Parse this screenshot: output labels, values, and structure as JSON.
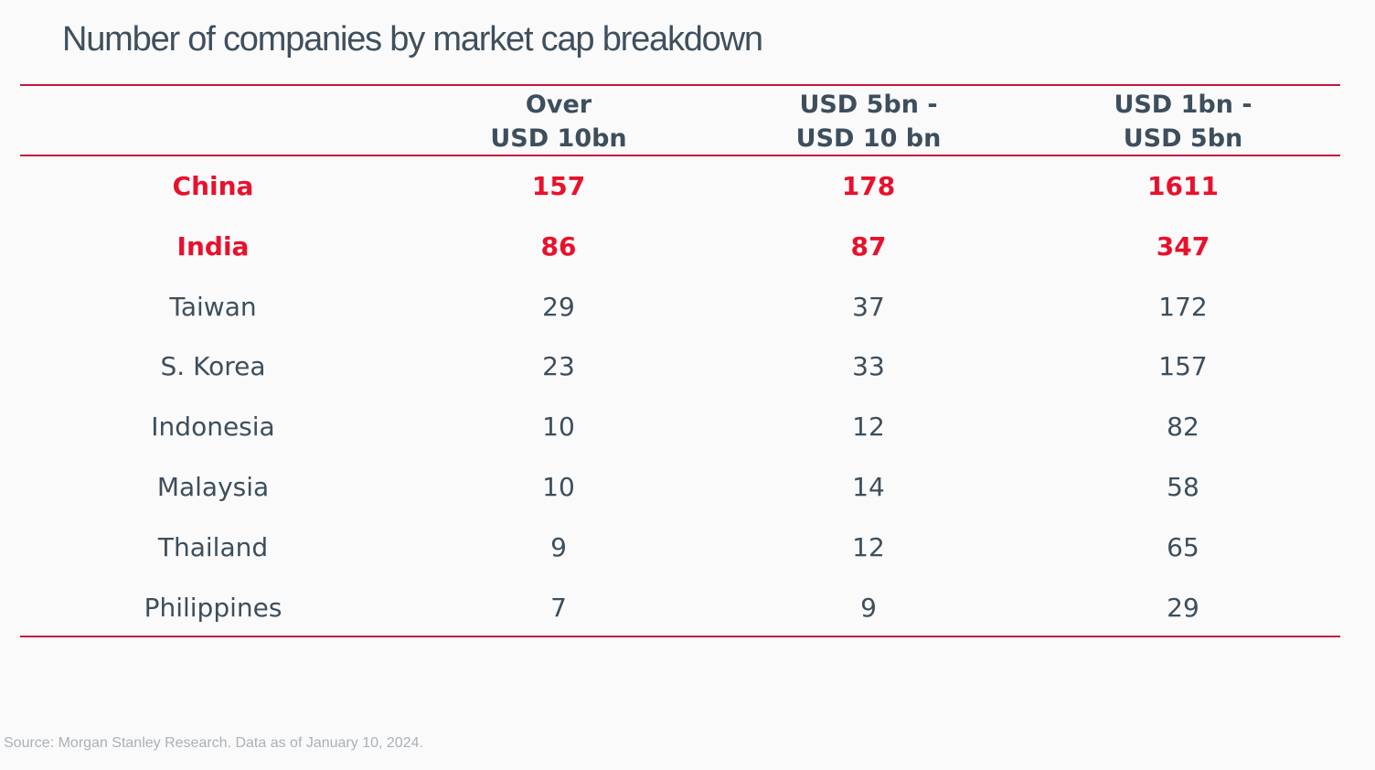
{
  "title": "Number of companies by market cap breakdown",
  "source": "Source: Morgan Stanley Research. Data as of January 10, 2024.",
  "colors": {
    "highlight": "#e8112d",
    "text": "#3d4e5c",
    "rule": "#c4173f",
    "source": "#a9b1b8"
  },
  "chart_data": {
    "type": "table",
    "title": "Number of companies by market cap breakdown",
    "columns": [
      {
        "line1": "Over",
        "line2": "USD 10bn"
      },
      {
        "line1": "USD 5bn -",
        "line2": "USD 10 bn"
      },
      {
        "line1": "USD 1bn -",
        "line2": "USD 5bn"
      }
    ],
    "rows": [
      {
        "country": "China",
        "highlight": true,
        "values": [
          "157",
          "178",
          "1611"
        ]
      },
      {
        "country": "India",
        "highlight": true,
        "values": [
          "86",
          "87",
          "347"
        ]
      },
      {
        "country": "Taiwan",
        "highlight": false,
        "values": [
          "29",
          "37",
          "172"
        ]
      },
      {
        "country": "S. Korea",
        "highlight": false,
        "values": [
          "23",
          "33",
          "157"
        ]
      },
      {
        "country": "Indonesia",
        "highlight": false,
        "values": [
          "10",
          "12",
          "82"
        ]
      },
      {
        "country": "Malaysia",
        "highlight": false,
        "values": [
          "10",
          "14",
          "58"
        ]
      },
      {
        "country": "Thailand",
        "highlight": false,
        "values": [
          "9",
          "12",
          "65"
        ]
      },
      {
        "country": "Philippines",
        "highlight": false,
        "values": [
          "7",
          "9",
          "29"
        ]
      }
    ]
  }
}
